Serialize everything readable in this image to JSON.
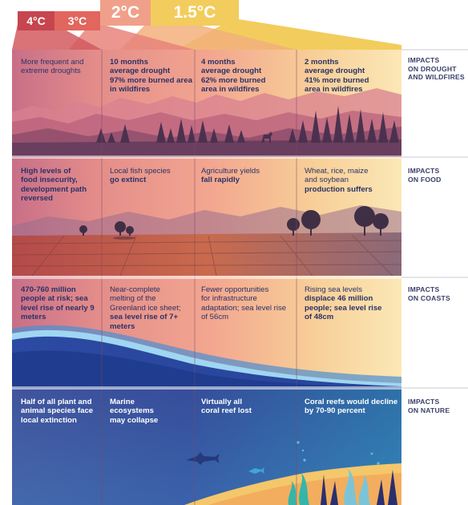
{
  "scenarios": [
    {
      "label": "4°C",
      "color": "#c6454f"
    },
    {
      "label": "3°C",
      "color": "#e1665e"
    },
    {
      "label": "2°C",
      "color": "#f0a08a"
    },
    {
      "label": "1.5°C",
      "color": "#f2cd5d"
    }
  ],
  "rows": [
    {
      "id": "drought",
      "label_line1": "IMPACTS",
      "label_line2": "ON DROUGHT",
      "label_line3": "AND WILDFIRES",
      "cells": [
        {
          "line1": "More frequent and",
          "line2": "extreme droughts",
          "line3": "",
          "line4": ""
        },
        {
          "line1": "10 months",
          "line2": "average drought",
          "line3": "97% more burned area",
          "line4": "in wildfires"
        },
        {
          "line1": "4 months",
          "line2": "average drought",
          "line3": "62% more burned",
          "line4": "area in wildfires"
        },
        {
          "line1": "2 months",
          "line2": "average drought",
          "line3": "41% more burned",
          "line4": "area in wildfires"
        }
      ]
    },
    {
      "id": "food",
      "label_line1": "IMPACTS",
      "label_line2": "ON FOOD",
      "label_line3": "",
      "cells": [
        {
          "line1": "High levels of",
          "line2": "food insecurity,",
          "line3": "development path",
          "line4": "reversed"
        },
        {
          "line1": "Local fish species",
          "line2": "go extinct",
          "line3": "",
          "line4": ""
        },
        {
          "line1": "Agriculture yields",
          "line2": "fall rapidly",
          "line3": "",
          "line4": ""
        },
        {
          "line1": "Wheat, rice, maize",
          "line2": "and soybean",
          "line3": "production suffers",
          "line4": ""
        }
      ]
    },
    {
      "id": "coasts",
      "label_line1": "IMPACTS",
      "label_line2": "ON COASTS",
      "label_line3": "",
      "cells": [
        {
          "line1": "470-760 million",
          "line2": "people at risk; sea",
          "line3": "level rise of nearly 9",
          "line4": "meters"
        },
        {
          "line1": "Near-complete",
          "line2": "melting of the",
          "line3": "Greenland ice sheet;",
          "line4": "sea level rise of 7+",
          "line5": "meters"
        },
        {
          "line1": "Fewer opportunities",
          "line2": "for infrastructure",
          "line3": "adaptation; sea level rise",
          "line4": "of 56cm"
        },
        {
          "line1": "Rising sea levels",
          "line2": "displace 46 million",
          "line3": "people; sea level rise",
          "line4": "of 48cm"
        }
      ]
    },
    {
      "id": "nature",
      "label_line1": "IMPACTS",
      "label_line2": "ON NATURE",
      "label_line3": "",
      "cells": [
        {
          "line1": "Half of all plant and",
          "line2": "animal species face",
          "line3": "local extinction",
          "line4": ""
        },
        {
          "line1": "Marine",
          "line2": "ecosystems",
          "line3": "may collapse",
          "line4": ""
        },
        {
          "line1": "Virtually all",
          "line2": "coral reef lost",
          "line3": "",
          "line4": ""
        },
        {
          "line1": "Coral reefs would decline",
          "line2": "by 70-90 percent",
          "line3": "",
          "line4": ""
        }
      ]
    }
  ]
}
